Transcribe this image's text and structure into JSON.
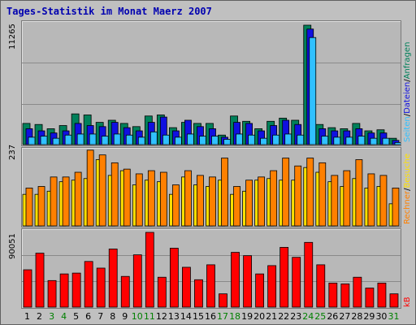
{
  "title": "Tages-Statistik im Monat Maerz 2007",
  "colors": {
    "anfragen": "#00805a",
    "dateien": "#1010e0",
    "seiten": "#30c0ff",
    "besuche": "#ffe000",
    "rechner": "#ff8000",
    "kb": "#ff0000",
    "weekend_day": "#008000"
  },
  "side_labels": {
    "top": {
      "anfragen": "Anfragen",
      "dateien": "Dateien",
      "seiten": "Seiten"
    },
    "middle": {
      "besuche": "Besuche",
      "rechner": "Rechner"
    },
    "bottom": {
      "kb": "kB"
    }
  },
  "chart_data": [
    {
      "type": "bar",
      "panel": "top",
      "max_label": "11265",
      "ylim": [
        0,
        11265
      ],
      "x": [
        1,
        2,
        3,
        4,
        5,
        6,
        7,
        8,
        9,
        10,
        11,
        12,
        13,
        14,
        15,
        16,
        17,
        18,
        19,
        20,
        21,
        22,
        23,
        24,
        25,
        26,
        27,
        28,
        29,
        30,
        31
      ],
      "series": [
        {
          "name": "Anfragen",
          "values": [
            2000,
            1900,
            1500,
            1800,
            2900,
            2800,
            2100,
            2300,
            2000,
            1700,
            2700,
            2800,
            1600,
            2100,
            2000,
            2000,
            900,
            2700,
            2200,
            1500,
            2200,
            2500,
            2300,
            11265,
            1900,
            1600,
            1500,
            2000,
            1300,
            1400,
            600
          ]
        },
        {
          "name": "Dateien",
          "values": [
            1500,
            1300,
            1100,
            1300,
            2000,
            1800,
            1700,
            2100,
            1600,
            1300,
            2100,
            2600,
            1300,
            2300,
            1700,
            1500,
            700,
            2100,
            2000,
            1300,
            1800,
            2300,
            1900,
            10900,
            1500,
            1300,
            1300,
            1500,
            1100,
            1100,
            400
          ]
        },
        {
          "name": "Seiten",
          "values": [
            700,
            800,
            600,
            900,
            1000,
            1000,
            800,
            1000,
            900,
            700,
            1200,
            900,
            700,
            1000,
            800,
            800,
            500,
            1000,
            900,
            600,
            900,
            1000,
            900,
            10100,
            800,
            700,
            700,
            800,
            600,
            600,
            200
          ]
        }
      ]
    },
    {
      "type": "bar",
      "panel": "middle",
      "max_label": "237",
      "ylim": [
        0,
        237
      ],
      "x": [
        1,
        2,
        3,
        4,
        5,
        6,
        7,
        8,
        9,
        10,
        11,
        12,
        13,
        14,
        15,
        16,
        17,
        18,
        19,
        20,
        21,
        22,
        23,
        24,
        25,
        26,
        27,
        28,
        29,
        30,
        31
      ],
      "series": [
        {
          "name": "Besuche",
          "values": [
            100,
            100,
            110,
            140,
            145,
            150,
            210,
            160,
            175,
            130,
            145,
            140,
            100,
            155,
            130,
            125,
            145,
            100,
            110,
            145,
            150,
            145,
            145,
            185,
            170,
            140,
            125,
            150,
            120,
            125,
            70
          ]
        },
        {
          "name": "Rechner",
          "values": [
            120,
            125,
            155,
            155,
            170,
            240,
            225,
            200,
            180,
            165,
            175,
            170,
            130,
            175,
            160,
            155,
            215,
            125,
            145,
            155,
            175,
            215,
            190,
            215,
            200,
            160,
            175,
            210,
            165,
            160,
            120
          ]
        }
      ]
    },
    {
      "type": "bar",
      "panel": "bottom",
      "max_label": "90051",
      "ylim": [
        0,
        90051
      ],
      "x": [
        1,
        2,
        3,
        4,
        5,
        6,
        7,
        8,
        9,
        10,
        11,
        12,
        13,
        14,
        15,
        16,
        17,
        18,
        19,
        20,
        21,
        22,
        23,
        24,
        25,
        26,
        27,
        28,
        29,
        30,
        31
      ],
      "series": [
        {
          "name": "kB",
          "values": [
            45000,
            65000,
            32000,
            40000,
            41000,
            55000,
            47000,
            70000,
            37000,
            63000,
            90051,
            36000,
            71000,
            48000,
            33000,
            51000,
            16000,
            66000,
            62000,
            40000,
            50000,
            72000,
            60000,
            78000,
            51000,
            29000,
            28000,
            36000,
            23000,
            29000,
            16000
          ]
        }
      ]
    }
  ],
  "x_labels": [
    {
      "label": "1",
      "weekend": false
    },
    {
      "label": "2",
      "weekend": false
    },
    {
      "label": "3",
      "weekend": true
    },
    {
      "label": "4",
      "weekend": true
    },
    {
      "label": "5",
      "weekend": false
    },
    {
      "label": "6",
      "weekend": false
    },
    {
      "label": "7",
      "weekend": false
    },
    {
      "label": "8",
      "weekend": false
    },
    {
      "label": "9",
      "weekend": false
    },
    {
      "label": "10",
      "weekend": true
    },
    {
      "label": "11",
      "weekend": true
    },
    {
      "label": "12",
      "weekend": false
    },
    {
      "label": "13",
      "weekend": false
    },
    {
      "label": "14",
      "weekend": false
    },
    {
      "label": "15",
      "weekend": false
    },
    {
      "label": "16",
      "weekend": false
    },
    {
      "label": "17",
      "weekend": true
    },
    {
      "label": "18",
      "weekend": true
    },
    {
      "label": "19",
      "weekend": false
    },
    {
      "label": "20",
      "weekend": false
    },
    {
      "label": "21",
      "weekend": false
    },
    {
      "label": "22",
      "weekend": false
    },
    {
      "label": "23",
      "weekend": false
    },
    {
      "label": "24",
      "weekend": true
    },
    {
      "label": "25",
      "weekend": true
    },
    {
      "label": "26",
      "weekend": false
    },
    {
      "label": "27",
      "weekend": false
    },
    {
      "label": "28",
      "weekend": false
    },
    {
      "label": "29",
      "weekend": false
    },
    {
      "label": "30",
      "weekend": false
    },
    {
      "label": "31",
      "weekend": true
    }
  ]
}
